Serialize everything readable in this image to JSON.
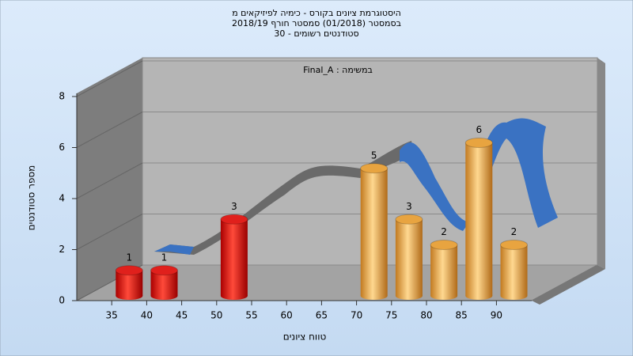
{
  "chart_data": {
    "type": "bar",
    "title": [
      "היסטוגרמת ציונים בקורס - כימיה לפיזיקאים מ",
      "בסמסטר  (01/2018)  סמסטר חורף 2018/19",
      "סטודנטים רשומים - 30"
    ],
    "annotation": "Final_A : במשימה",
    "x_label": "טווח ציונים",
    "y_label": "מספר סטודנטים",
    "categories": [
      35,
      40,
      45,
      50,
      55,
      60,
      65,
      70,
      75,
      80,
      85,
      90
    ],
    "values": [
      1,
      1,
      0,
      3,
      0,
      0,
      0,
      5,
      3,
      2,
      6,
      2
    ],
    "colors": [
      "#e0201c",
      "#e0201c",
      "#e0201c",
      "#e0201c",
      "#e0201c",
      "#e0201c",
      "#e0201c",
      "#e8a440",
      "#e8a440",
      "#e8a440",
      "#e8a440",
      "#e8a440"
    ],
    "ylim": [
      0,
      8
    ],
    "yticks": [
      0,
      2,
      4,
      6,
      8
    ],
    "grid": true
  }
}
